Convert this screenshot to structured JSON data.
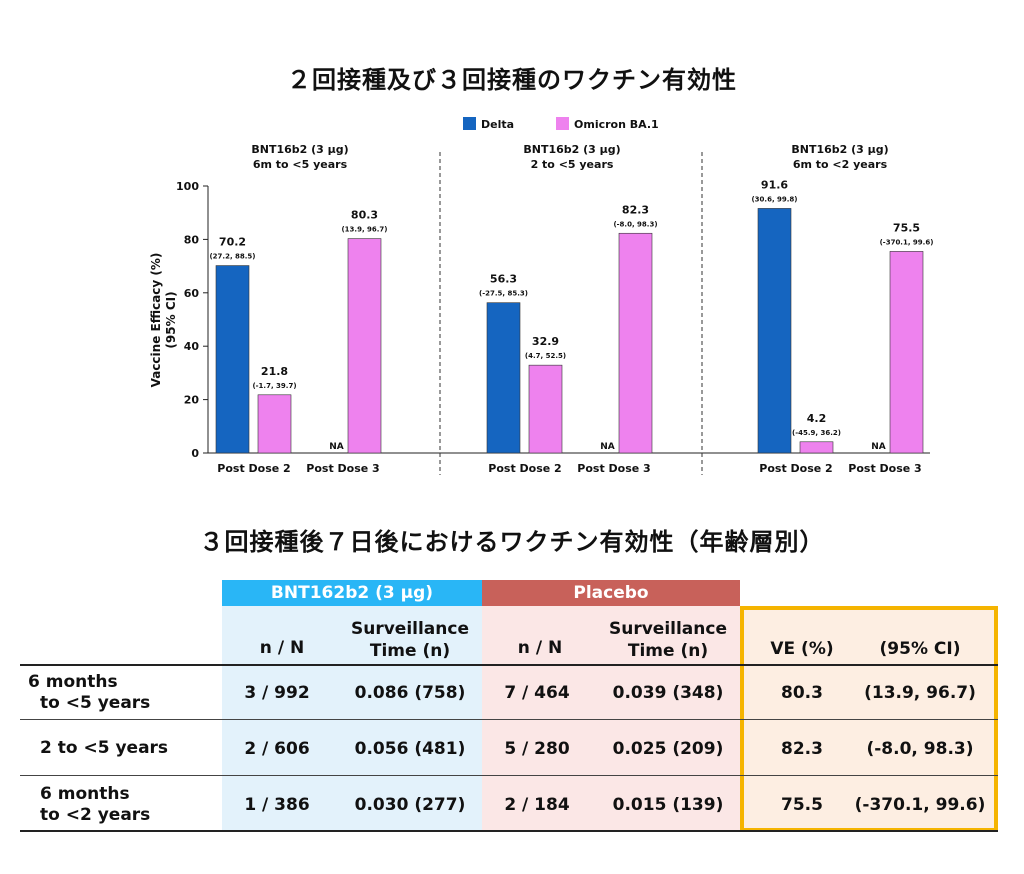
{
  "titles": {
    "chart_title": "２回接種及び３回接種のワクチン有効性",
    "table_title": "３回接種後７日後におけるワクチン有効性（年齢層別）"
  },
  "colors": {
    "delta": "#1565c0",
    "omicron": "#ee82ee",
    "bnt_header": "#29b6f6",
    "placebo_header": "#c8615a",
    "bnt_bg": "#e3f2fb",
    "placebo_bg": "#fbe7e6",
    "ve_bg": "#fdeee2",
    "ve_border": "#f5b400"
  },
  "chart_data": {
    "type": "bar",
    "title": "２回接種及び３回接種のワクチン有効性",
    "ylabel": "Vaccine Efficacy (%)\n(95% CI)",
    "ylim": [
      0,
      100
    ],
    "yticks": [
      "0",
      "20",
      "40",
      "60",
      "80",
      "100"
    ],
    "legend": [
      {
        "name": "Delta",
        "color": "#1565c0"
      },
      {
        "name": "Omicron BA.1",
        "color": "#ee82ee"
      }
    ],
    "legend_position": "top-center",
    "panels": [
      {
        "title": "BNT16b2 (3 μg)",
        "subtitle": "6m to <5 years",
        "categories": [
          "Post Dose 2",
          "Post Dose 3"
        ],
        "series": [
          {
            "name": "Delta",
            "values": [
              70.2,
              null
            ],
            "labels": [
              "70.2",
              "NA"
            ],
            "ci": [
              "(27.2, 88.5)",
              ""
            ]
          },
          {
            "name": "Omicron BA.1",
            "values": [
              21.8,
              80.3
            ],
            "labels": [
              "21.8",
              "80.3"
            ],
            "ci": [
              "(-1.7, 39.7)",
              "(13.9, 96.7)"
            ]
          }
        ]
      },
      {
        "title": "BNT16b2 (3 μg)",
        "subtitle": "2 to <5 years",
        "categories": [
          "Post Dose 2",
          "Post Dose 3"
        ],
        "series": [
          {
            "name": "Delta",
            "values": [
              56.3,
              null
            ],
            "labels": [
              "56.3",
              "NA"
            ],
            "ci": [
              "(-27.5, 85.3)",
              ""
            ]
          },
          {
            "name": "Omicron BA.1",
            "values": [
              32.9,
              82.3
            ],
            "labels": [
              "32.9",
              "82.3"
            ],
            "ci": [
              "(4.7, 52.5)",
              "(-8.0, 98.3)"
            ]
          }
        ]
      },
      {
        "title": "BNT16b2 (3 μg)",
        "subtitle": "6m to <2 years",
        "categories": [
          "Post Dose 2",
          "Post Dose 3"
        ],
        "series": [
          {
            "name": "Delta",
            "values": [
              91.6,
              null
            ],
            "labels": [
              "91.6",
              "NA"
            ],
            "ci": [
              "(30.6, 99.8)",
              ""
            ]
          },
          {
            "name": "Omicron BA.1",
            "values": [
              4.2,
              75.5
            ],
            "labels": [
              "4.2",
              "75.5"
            ],
            "ci": [
              "(-45.9, 36.2)",
              "(-370.1, 99.6)"
            ]
          }
        ]
      }
    ]
  },
  "table": {
    "group_headers": {
      "bnt": "BNT162b2 (3 μg)",
      "placebo": "Placebo"
    },
    "columns": {
      "bnt_nN": "n / N",
      "bnt_surv_1": "Surveillance",
      "bnt_surv_2": "Time (n)",
      "pl_nN": "n / N",
      "pl_surv_1": "Surveillance",
      "pl_surv_2": "Time (n)",
      "ve": "VE (%)",
      "ci": "(95% CI)"
    },
    "rows": [
      {
        "label_1": "6 months",
        "label_2": "to <5 years",
        "bnt_nN": "3 / 992",
        "bnt_surv": "0.086 (758)",
        "pl_nN": "7 / 464",
        "pl_surv": "0.039 (348)",
        "ve": "80.3",
        "ci": "(13.9, 96.7)"
      },
      {
        "label_1": "2 to <5 years",
        "label_2": "",
        "bnt_nN": "2 / 606",
        "bnt_surv": "0.056 (481)",
        "pl_nN": "5 / 280",
        "pl_surv": "0.025 (209)",
        "ve": "82.3",
        "ci": "(-8.0, 98.3)"
      },
      {
        "label_1": "6 months",
        "label_2": "to <2 years",
        "bnt_nN": "1 / 386",
        "bnt_surv": "0.030 (277)",
        "pl_nN": "2 / 184",
        "pl_surv": "0.015 (139)",
        "ve": "75.5",
        "ci": "(-370.1, 99.6)"
      }
    ]
  }
}
